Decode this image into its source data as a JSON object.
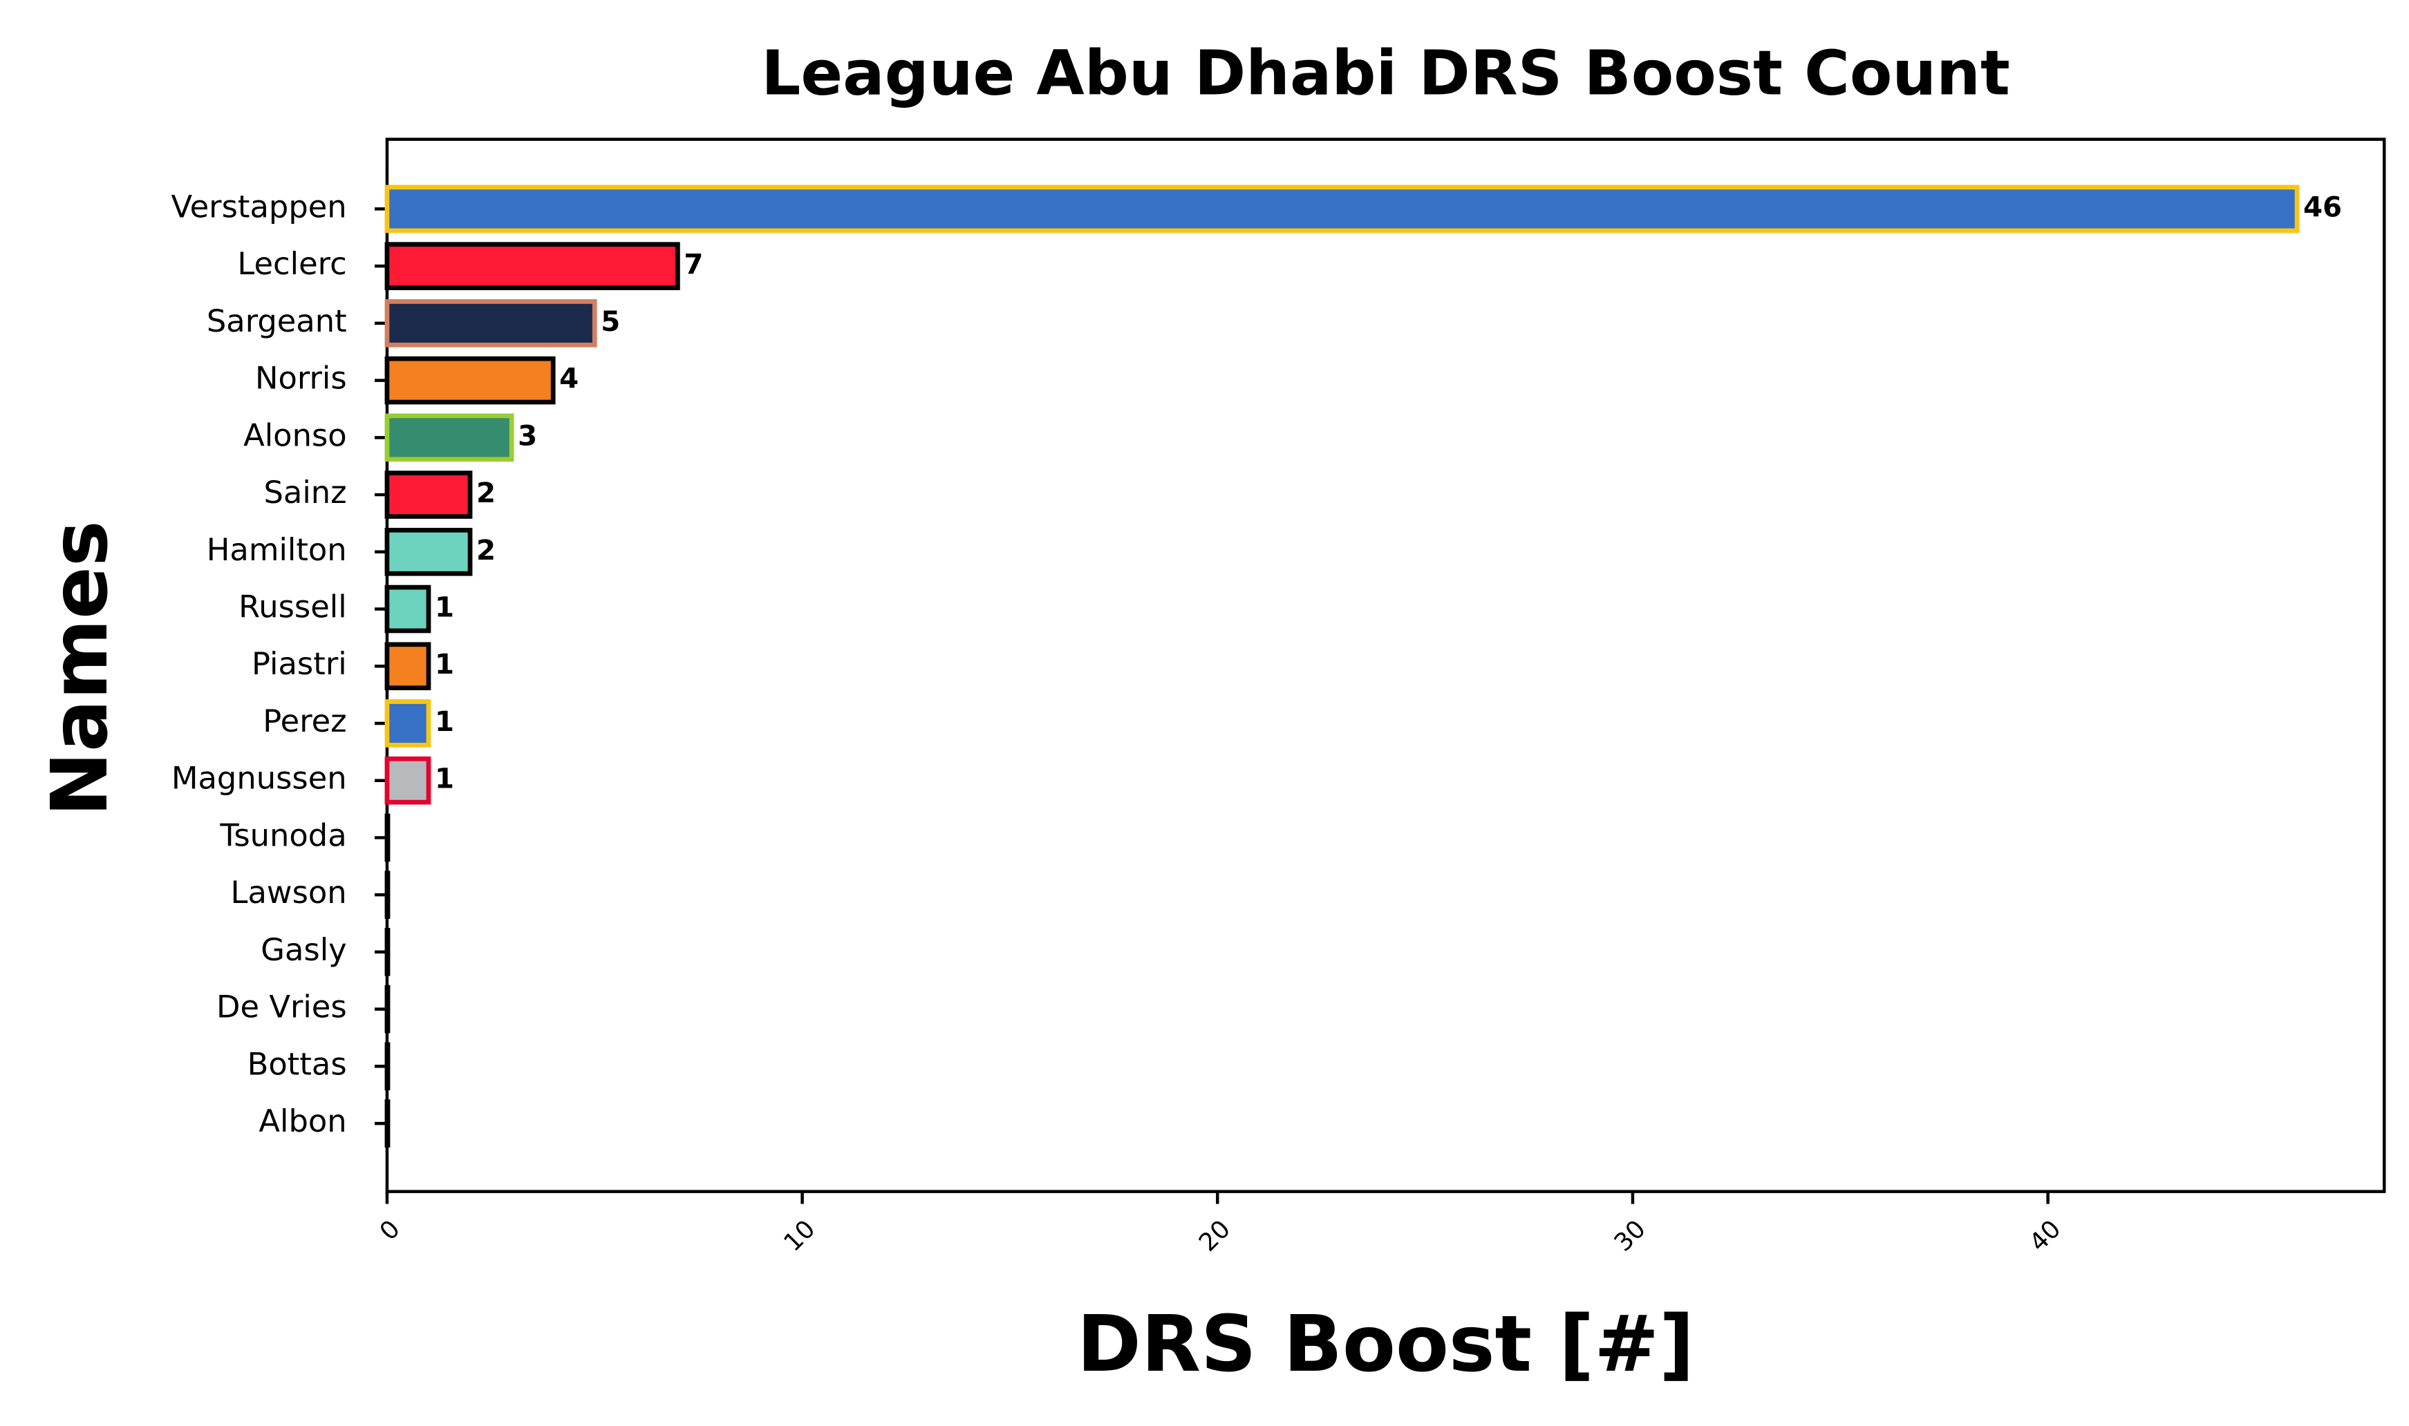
{
  "chart_data": {
    "type": "barh",
    "title": "League Abu Dhabi DRS Boost Count",
    "xlabel": "DRS Boost [#]",
    "ylabel": "Names",
    "categories": [
      "Verstappen",
      "Leclerc",
      "Sargeant",
      "Norris",
      "Alonso",
      "Sainz",
      "Hamilton",
      "Russell",
      "Piastri",
      "Perez",
      "Magnussen",
      "Tsunoda",
      "Lawson",
      "Gasly",
      "De Vries",
      "Bottas",
      "Albon"
    ],
    "values": [
      46,
      7,
      5,
      4,
      3,
      2,
      2,
      1,
      1,
      1,
      1,
      0,
      0,
      0,
      0,
      0,
      0
    ],
    "colors": [
      "#3671c6",
      "#ff1a35",
      "#1c2b4c",
      "#f58020",
      "#358c6e",
      "#ff1a35",
      "#6cd3bf",
      "#6cd3bf",
      "#f58020",
      "#3671c6",
      "#b6babd",
      "#3671c6",
      "#3671c6",
      "#2293d1",
      "#2b4562",
      "#c92d4b",
      "#37bedd"
    ],
    "edgecolors": [
      "#f5c518",
      "#000000",
      "#d08060",
      "#000000",
      "#9acd32",
      "#000000",
      "#000000",
      "#000000",
      "#000000",
      "#f5c518",
      "#e6002d",
      "#000000",
      "#000000",
      "#000000",
      "#000000",
      "#000000",
      "#000000"
    ],
    "xlim": [
      0,
      48.1
    ],
    "xticks": [
      0,
      10,
      20,
      30,
      40
    ]
  }
}
